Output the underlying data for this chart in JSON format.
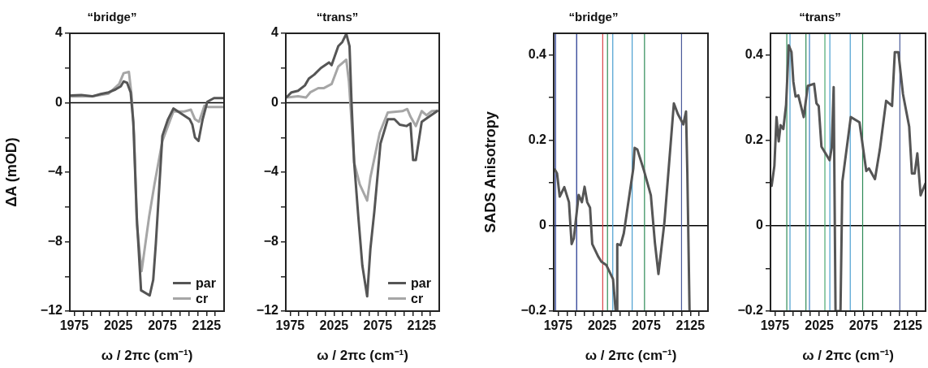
{
  "chart_data": [
    {
      "type": "line",
      "title": "“bridge”",
      "xlabel": "ω / 2πc (cm⁻¹)",
      "ylabel": "ΔA (mOD)",
      "xlim": [
        1970,
        2145
      ],
      "ylim": [
        -12,
        4
      ],
      "xticks": [
        1975,
        {
          "value": 1985,
          "label": null
        },
        {
          "value": 1995,
          "label": null
        },
        {
          "value": 2005,
          "label": null
        },
        {
          "value": 2015,
          "label": null
        },
        2025,
        {
          "value": 2035,
          "label": null
        },
        {
          "value": 2045,
          "label": null
        },
        {
          "value": 2055,
          "label": null
        },
        {
          "value": 2065,
          "label": null
        },
        2075,
        {
          "value": 2085,
          "label": null
        },
        {
          "value": 2095,
          "label": null
        },
        {
          "value": 2105,
          "label": null
        },
        {
          "value": 2115,
          "label": null
        },
        2125,
        {
          "value": 2135,
          "label": null
        }
      ],
      "yticks": [
        {
          "value": -12,
          "label": "−12"
        },
        {
          "value": -10,
          "label": null
        },
        {
          "value": -8,
          "label": "−8"
        },
        {
          "value": -6,
          "label": null
        },
        {
          "value": -4,
          "label": "−4"
        },
        {
          "value": -2,
          "label": null
        },
        0,
        {
          "value": 2,
          "label": null
        },
        4
      ],
      "legend": "bottom right",
      "ref_lines": [
        {
          "axis": "y",
          "value": 0,
          "color": "#000000"
        }
      ],
      "series": [
        {
          "name": "par",
          "color": "#555555",
          "x": [
            1971.6,
            1983,
            1995.5,
            2005,
            2014,
            2021.6,
            2027.8,
            2031,
            2035,
            2039,
            2042,
            2046,
            2050.8,
            2060.6,
            2064.6,
            2067.6,
            2075,
            2081.4,
            2087.5,
            2106,
            2109,
            2112,
            2116,
            2120.7,
            2126,
            2133.6,
            2145
          ],
          "values": [
            0.42,
            0.45,
            0.37,
            0.5,
            0.6,
            0.76,
            0.95,
            1.23,
            1.15,
            0.6,
            -1.1,
            -6.6,
            -10.8,
            -11.1,
            -10.2,
            -8.1,
            -1.9,
            -0.95,
            -0.33,
            -0.95,
            -1.26,
            -2.0,
            -2.2,
            -0.95,
            0.06,
            0.27,
            0.27
          ]
        },
        {
          "name": "cr",
          "color": "#a6a6a6",
          "x": [
            1971.6,
            1995.5,
            2014,
            2026,
            2031,
            2037,
            2040,
            2043,
            2046,
            2051.4,
            2060,
            2066,
            2075,
            2087.5,
            2099.8,
            2107.4,
            2112,
            2116.6,
            2122.7,
            2127.5,
            2145
          ],
          "values": [
            0.36,
            0.37,
            0.53,
            1.08,
            1.7,
            1.78,
            0.45,
            -1.9,
            -7.0,
            -9.7,
            -6.55,
            -4.7,
            -2.2,
            -0.5,
            -0.5,
            -0.4,
            -0.95,
            -1.1,
            -0.17,
            -0.25,
            -0.25
          ]
        }
      ]
    },
    {
      "type": "line",
      "title": "“trans”",
      "xlabel": "ω / 2πc (cm⁻¹)",
      "xlim": [
        1970,
        2145
      ],
      "ylim": [
        -12,
        4
      ],
      "xticks": [
        1975,
        {
          "value": 1985,
          "label": null
        },
        {
          "value": 1995,
          "label": null
        },
        {
          "value": 2005,
          "label": null
        },
        {
          "value": 2015,
          "label": null
        },
        2025,
        {
          "value": 2035,
          "label": null
        },
        {
          "value": 2045,
          "label": null
        },
        {
          "value": 2055,
          "label": null
        },
        {
          "value": 2065,
          "label": null
        },
        2075,
        {
          "value": 2085,
          "label": null
        },
        {
          "value": 2095,
          "label": null
        },
        {
          "value": 2105,
          "label": null
        },
        {
          "value": 2115,
          "label": null
        },
        2125,
        {
          "value": 2135,
          "label": null
        }
      ],
      "yticks": [
        {
          "value": -12,
          "label": "−12"
        },
        {
          "value": -10,
          "label": null
        },
        {
          "value": -8,
          "label": "−8"
        },
        {
          "value": -6,
          "label": null
        },
        {
          "value": -4,
          "label": "−4"
        },
        {
          "value": -2,
          "label": null
        },
        0,
        {
          "value": 2,
          "label": null
        },
        4
      ],
      "legend": "bottom right",
      "ref_lines": [
        {
          "axis": "y",
          "value": 0,
          "color": "#000000"
        }
      ],
      "series": [
        {
          "name": "par",
          "color": "#555555",
          "x": [
            1971.3,
            1976.5,
            1984,
            1991.8,
            1996.3,
            2002.4,
            2010,
            2019.2,
            2022.3,
            2029.9,
            2034.5,
            2039,
            2042.7,
            2045,
            2048,
            2052.7,
            2057.3,
            2062.8,
            2066.5,
            2071,
            2078,
            2086.3,
            2093.9,
            2100,
            2107.6,
            2112.2,
            2115.2,
            2118.3,
            2125,
            2133.5,
            2142.7
          ],
          "values": [
            0.34,
            0.6,
            0.69,
            1.0,
            1.39,
            1.62,
            2.0,
            2.32,
            2.17,
            3.26,
            3.5,
            3.97,
            3.26,
            0,
            -3.45,
            -6.55,
            -9.37,
            -11.15,
            -8.4,
            -6.25,
            -2.35,
            -0.95,
            -0.95,
            -1.26,
            -1.34,
            -1.19,
            -3.3,
            -3.3,
            -1.1,
            -0.8,
            -0.48
          ]
        },
        {
          "name": "cr",
          "color": "#a6a6a6",
          "x": [
            1971.3,
            1984,
            1993,
            1997.9,
            2007,
            2013.1,
            2022.3,
            2029.9,
            2039,
            2042,
            2048,
            2054.3,
            2062.8,
            2066.5,
            2077.1,
            2086.3,
            2103,
            2108.5,
            2112.2,
            2118.3,
            2125,
            2130.5,
            2136.6,
            2142.7
          ],
          "values": [
            0.3,
            0.37,
            0.3,
            0.6,
            0.84,
            0.84,
            1.08,
            2.09,
            2.48,
            1.23,
            -3.45,
            -4.7,
            -5.63,
            -4.3,
            -1.73,
            -0.56,
            -0.48,
            -0.36,
            -0.8,
            -1.34,
            -0.48,
            -0.72,
            -0.48,
            -0.45
          ]
        }
      ]
    },
    {
      "type": "line",
      "title": "“bridge”",
      "xlabel": "ω / 2πc (cm⁻¹)",
      "ylabel": "SADS Anisotropy",
      "xlim": [
        1970,
        2145
      ],
      "ylim": [
        -0.2,
        0.45
      ],
      "xticks": [
        1975,
        {
          "value": 1985,
          "label": null
        },
        {
          "value": 1995,
          "label": null
        },
        {
          "value": 2005,
          "label": null
        },
        {
          "value": 2015,
          "label": null
        },
        2025,
        {
          "value": 2035,
          "label": null
        },
        {
          "value": 2045,
          "label": null
        },
        {
          "value": 2055,
          "label": null
        },
        {
          "value": 2065,
          "label": null
        },
        2075,
        {
          "value": 2085,
          "label": null
        },
        {
          "value": 2095,
          "label": null
        },
        {
          "value": 2105,
          "label": null
        },
        {
          "value": 2115,
          "label": null
        },
        2125,
        {
          "value": 2135,
          "label": null
        }
      ],
      "yticks": [
        {
          "value": -0.2,
          "label": "−0.2"
        },
        {
          "value": -0.1,
          "label": null
        },
        0,
        {
          "value": 0.1,
          "label": null
        },
        0.2,
        {
          "value": 0.3,
          "label": null
        },
        0.4
      ],
      "ref_lines": [
        {
          "axis": "y",
          "value": 0,
          "color": "#000000"
        },
        {
          "axis": "x",
          "value": 1972,
          "color": "#1a2f8c"
        },
        {
          "axis": "x",
          "value": 1996,
          "color": "#1a2f8c"
        },
        {
          "axis": "x",
          "value": 2025.6,
          "color": "#d9434a"
        },
        {
          "axis": "x",
          "value": 2031,
          "color": "#2e8b57"
        },
        {
          "axis": "x",
          "value": 2037,
          "color": "#4a9fd0"
        },
        {
          "axis": "x",
          "value": 2059,
          "color": "#4a9fd0"
        },
        {
          "axis": "x",
          "value": 2073,
          "color": "#2e8b57"
        },
        {
          "axis": "x",
          "value": 2115,
          "color": "#4a5a9a"
        }
      ],
      "series": [
        {
          "color": "#555555",
          "x": [
            1971.3,
            1973.8,
            1976.8,
            1982,
            1987.3,
            1990.3,
            1992.8,
            1998.3,
            2002,
            2005,
            2008,
            2011.2,
            2013.7,
            2020.4,
            2024,
            2029.6,
            2037.3,
            2040.3,
            2042.1,
            2042.1,
            2045.8,
            2049.5,
            2060.3,
            2061.8,
            2064.9,
            2072.5,
            2080.2,
            2084.8,
            2088.8,
            2095.6,
            2106.3,
            2110.9,
            2117,
            2120.1,
            2121.6,
            2124.1
          ],
          "values": [
            0.131,
            0.122,
            0.068,
            0.09,
            0.055,
            -0.043,
            -0.03,
            0.072,
            0.055,
            0.091,
            0.055,
            0.042,
            -0.043,
            -0.072,
            -0.084,
            -0.092,
            -0.125,
            -0.2,
            -0.2,
            -0.043,
            -0.046,
            -0.018,
            0.134,
            0.182,
            0.178,
            0.128,
            0.071,
            -0.04,
            -0.113,
            0.008,
            0.286,
            0.261,
            0.237,
            0.267,
            0.122,
            -0.2
          ]
        }
      ]
    },
    {
      "type": "line",
      "title": "“trans”",
      "xlabel": "ω / 2πc (cm⁻¹)",
      "xlim": [
        1970,
        2145
      ],
      "ylim": [
        -0.2,
        0.45
      ],
      "xticks": [
        1975,
        {
          "value": 1985,
          "label": null
        },
        {
          "value": 1995,
          "label": null
        },
        {
          "value": 2005,
          "label": null
        },
        {
          "value": 2015,
          "label": null
        },
        2025,
        {
          "value": 2035,
          "label": null
        },
        {
          "value": 2045,
          "label": null
        },
        {
          "value": 2055,
          "label": null
        },
        {
          "value": 2065,
          "label": null
        },
        2075,
        {
          "value": 2085,
          "label": null
        },
        {
          "value": 2095,
          "label": null
        },
        {
          "value": 2105,
          "label": null
        },
        {
          "value": 2115,
          "label": null
        },
        2125,
        {
          "value": 2135,
          "label": null
        }
      ],
      "yticks": [
        {
          "value": -0.2,
          "label": "−0.2"
        },
        {
          "value": -0.1,
          "label": null
        },
        0,
        {
          "value": 0.1,
          "label": null
        },
        0.2,
        {
          "value": 0.3,
          "label": null
        },
        0.4
      ],
      "ref_lines": [
        {
          "axis": "y",
          "value": 0,
          "color": "#000000"
        },
        {
          "axis": "x",
          "value": 1988.4,
          "color": "#2e8b57"
        },
        {
          "axis": "x",
          "value": 1992,
          "color": "#4a9fd0"
        },
        {
          "axis": "x",
          "value": 2010,
          "color": "#2e8b57"
        },
        {
          "axis": "x",
          "value": 2014,
          "color": "#3a7fc0"
        },
        {
          "axis": "x",
          "value": 2031.4,
          "color": "#4aa870"
        },
        {
          "axis": "x",
          "value": 2037,
          "color": "#4a9fd0"
        },
        {
          "axis": "x",
          "value": 2060,
          "color": "#4a9fd0"
        },
        {
          "axis": "x",
          "value": 2074,
          "color": "#2e8b57"
        },
        {
          "axis": "x",
          "value": 2116,
          "color": "#4a5a9a"
        }
      ],
      "series": [
        {
          "color": "#555555",
          "x": [
            1971.3,
            1974.4,
            1976.8,
            1979.3,
            1981.4,
            1984.5,
            1987.6,
            1990.6,
            1993.7,
            1995.8,
            1998.3,
            2001.4,
            2007.5,
            2012.1,
            2019.2,
            2021.9,
            2024.4,
            2027.5,
            2036.7,
            2039.1,
            2041.3,
            2043.4,
            2049,
            2051.1,
            2060.6,
            2070.4,
            2078.1,
            2081.1,
            2087.9,
            2093.4,
            2100.5,
            2107.2,
            2110.3,
            2114.3,
            2119.5,
            2126.5,
            2129.6,
            2132.7,
            2135.7,
            2139.4,
            2145
          ],
          "values": [
            0.093,
            0.14,
            0.254,
            0.197,
            0.235,
            0.226,
            0.283,
            0.422,
            0.406,
            0.337,
            0.302,
            0.305,
            0.254,
            0.327,
            0.332,
            0.286,
            0.28,
            0.185,
            0.153,
            0.182,
            0.324,
            -0.2,
            -0.2,
            0.103,
            0.254,
            0.242,
            0.128,
            0.134,
            0.109,
            0.178,
            0.292,
            0.28,
            0.406,
            0.406,
            0.308,
            0.232,
            0.122,
            0.122,
            0.169,
            0.071,
            0.099
          ]
        }
      ]
    }
  ]
}
